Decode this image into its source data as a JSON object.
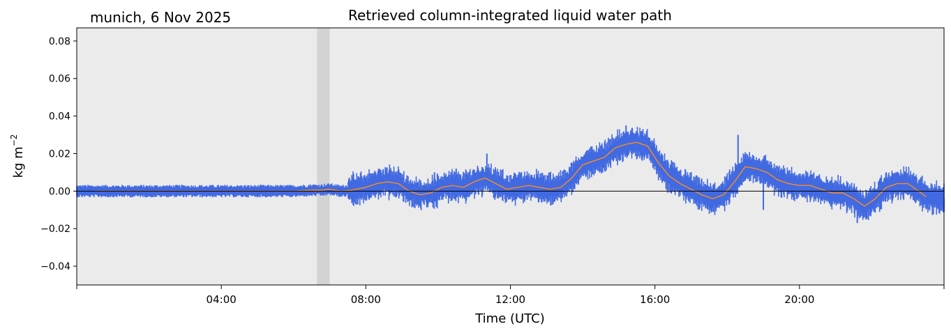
{
  "chart_data": {
    "type": "line",
    "title": "Retrieved column-integrated liquid water path",
    "subtitle": "munich, 6 Nov 2025",
    "xlabel": "Time (UTC)",
    "ylabel": "kg m",
    "ylabel_exponent": "−2",
    "xlim": [
      0,
      24
    ],
    "ylim": [
      -0.05,
      0.087
    ],
    "xticks": [
      {
        "value": 4,
        "label": "04:00"
      },
      {
        "value": 8,
        "label": "08:00"
      },
      {
        "value": 12,
        "label": "12:00"
      },
      {
        "value": 16,
        "label": "16:00"
      },
      {
        "value": 20,
        "label": "20:00"
      }
    ],
    "xticks_minor": [
      0,
      24
    ],
    "yticks": [
      {
        "value": -0.04,
        "label": "−0.04"
      },
      {
        "value": -0.02,
        "label": "−0.02"
      },
      {
        "value": 0.0,
        "label": "0.00"
      },
      {
        "value": 0.02,
        "label": "0.02"
      },
      {
        "value": 0.04,
        "label": "0.04"
      },
      {
        "value": 0.06,
        "label": "0.06"
      },
      {
        "value": 0.08,
        "label": "0.08"
      }
    ],
    "grid": false,
    "colors": {
      "background": "#ebebeb",
      "shaded_band": "#d3d3d3",
      "raw_series": "#4169e1",
      "smoothed_series": "#ff8c1a",
      "zero_line": "#000000"
    },
    "shaded_intervals": [
      [
        6.65,
        7.0
      ]
    ],
    "zero_line": 0.0,
    "series": [
      {
        "style": "raw-scatter",
        "x": [
          0.0,
          0.5,
          1.0,
          1.5,
          2.0,
          2.5,
          3.0,
          3.5,
          4.0,
          4.5,
          5.0,
          5.5,
          6.0,
          6.5,
          6.8,
          7.0,
          7.3,
          7.6,
          8.0,
          8.3,
          8.6,
          8.9,
          9.2,
          9.5,
          9.8,
          10.1,
          10.4,
          10.7,
          11.0,
          11.3,
          11.6,
          11.9,
          12.2,
          12.5,
          12.8,
          13.1,
          13.4,
          13.7,
          14.0,
          14.3,
          14.6,
          14.9,
          15.2,
          15.5,
          15.8,
          16.1,
          16.4,
          16.7,
          17.0,
          17.3,
          17.6,
          17.9,
          18.2,
          18.5,
          18.8,
          19.1,
          19.4,
          19.7,
          20.0,
          20.3,
          20.6,
          20.9,
          21.2,
          21.5,
          21.8,
          22.1,
          22.4,
          22.7,
          23.0,
          23.3,
          23.6,
          24.0
        ],
        "y": [
          0.0,
          0.0,
          0.0,
          0.0,
          0.0,
          0.0,
          0.0,
          0.0,
          0.0,
          0.0,
          0.0,
          0.0,
          0.0,
          0.0005,
          0.0005,
          0.001,
          0.0,
          0.0005,
          0.002,
          0.004,
          0.005,
          0.004,
          0.0,
          -0.002,
          -0.001,
          0.002,
          0.003,
          0.002,
          0.005,
          0.007,
          0.004,
          0.001,
          0.002,
          0.003,
          0.002,
          0.001,
          0.002,
          0.007,
          0.014,
          0.016,
          0.018,
          0.023,
          0.025,
          0.026,
          0.024,
          0.015,
          0.008,
          0.004,
          0.001,
          -0.002,
          -0.004,
          -0.002,
          0.005,
          0.013,
          0.012,
          0.01,
          0.006,
          0.004,
          0.003,
          0.003,
          0.001,
          -0.001,
          -0.001,
          -0.004,
          -0.008,
          -0.004,
          0.002,
          0.004,
          0.004,
          0.0,
          -0.003,
          -0.004
        ]
      },
      {
        "style": "smoothed",
        "x": [
          0.5,
          1.0,
          1.5,
          2.0,
          2.5,
          3.0,
          3.5,
          4.0,
          4.5,
          5.0,
          5.5,
          6.0,
          6.5,
          6.8,
          7.0,
          7.3,
          7.6,
          8.0,
          8.3,
          8.6,
          8.9,
          9.2,
          9.5,
          9.8,
          10.1,
          10.4,
          10.7,
          11.0,
          11.3,
          11.6,
          11.9,
          12.2,
          12.5,
          12.8,
          13.1,
          13.4,
          13.7,
          14.0,
          14.3,
          14.6,
          14.9,
          15.2,
          15.5,
          15.8,
          16.1,
          16.4,
          16.7,
          17.0,
          17.3,
          17.6,
          17.9,
          18.2,
          18.5,
          18.8,
          19.1,
          19.4,
          19.7,
          20.0,
          20.3,
          20.6,
          20.9,
          21.2,
          21.5,
          21.8,
          22.1,
          22.4,
          22.7,
          23.0,
          23.3,
          23.5
        ],
        "y": [
          0.0,
          0.0,
          0.0,
          0.0,
          0.0,
          0.0,
          0.0,
          0.0,
          0.0,
          0.0,
          0.0,
          0.0,
          0.0005,
          0.0005,
          0.001,
          0.0,
          0.0005,
          0.002,
          0.004,
          0.005,
          0.004,
          0.0,
          -0.002,
          -0.001,
          0.002,
          0.003,
          0.002,
          0.005,
          0.007,
          0.004,
          0.001,
          0.002,
          0.003,
          0.002,
          0.001,
          0.002,
          0.007,
          0.014,
          0.016,
          0.018,
          0.023,
          0.025,
          0.026,
          0.024,
          0.015,
          0.008,
          0.004,
          0.001,
          -0.002,
          -0.004,
          -0.002,
          0.005,
          0.013,
          0.012,
          0.01,
          0.006,
          0.004,
          0.003,
          0.003,
          0.001,
          -0.001,
          -0.001,
          -0.004,
          -0.008,
          -0.004,
          0.002,
          0.004,
          0.004,
          0.0,
          -0.003
        ]
      }
    ]
  }
}
